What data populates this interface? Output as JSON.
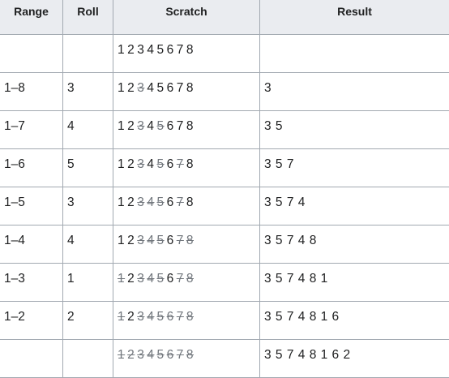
{
  "headers": {
    "range": "Range",
    "roll": "Roll",
    "scratch": "Scratch",
    "result": "Result"
  },
  "rows": [
    {
      "range": "",
      "roll": "",
      "struck": [],
      "result": ""
    },
    {
      "range": "1–8",
      "roll": "3",
      "struck": [
        3
      ],
      "result": "3"
    },
    {
      "range": "1–7",
      "roll": "4",
      "struck": [
        3,
        5
      ],
      "result": "3 5"
    },
    {
      "range": "1–6",
      "roll": "5",
      "struck": [
        3,
        5,
        7
      ],
      "result": "3 5 7"
    },
    {
      "range": "1–5",
      "roll": "3",
      "struck": [
        3,
        4,
        5,
        7
      ],
      "result": "3 5 7 4"
    },
    {
      "range": "1–4",
      "roll": "4",
      "struck": [
        3,
        4,
        5,
        7,
        8
      ],
      "result": "3 5 7 4 8"
    },
    {
      "range": "1–3",
      "roll": "1",
      "struck": [
        1,
        3,
        4,
        5,
        7,
        8
      ],
      "result": "3 5 7 4 8 1"
    },
    {
      "range": "1–2",
      "roll": "2",
      "struck": [
        1,
        3,
        4,
        5,
        6,
        7,
        8
      ],
      "result": "3 5 7 4 8 1 6"
    },
    {
      "range": "",
      "roll": "",
      "struck": [
        1,
        2,
        3,
        4,
        5,
        6,
        7,
        8
      ],
      "result": "3 5 7 4 8 1 6 2"
    }
  ],
  "digits": [
    "1",
    "2",
    "3",
    "4",
    "5",
    "6",
    "7",
    "8"
  ]
}
